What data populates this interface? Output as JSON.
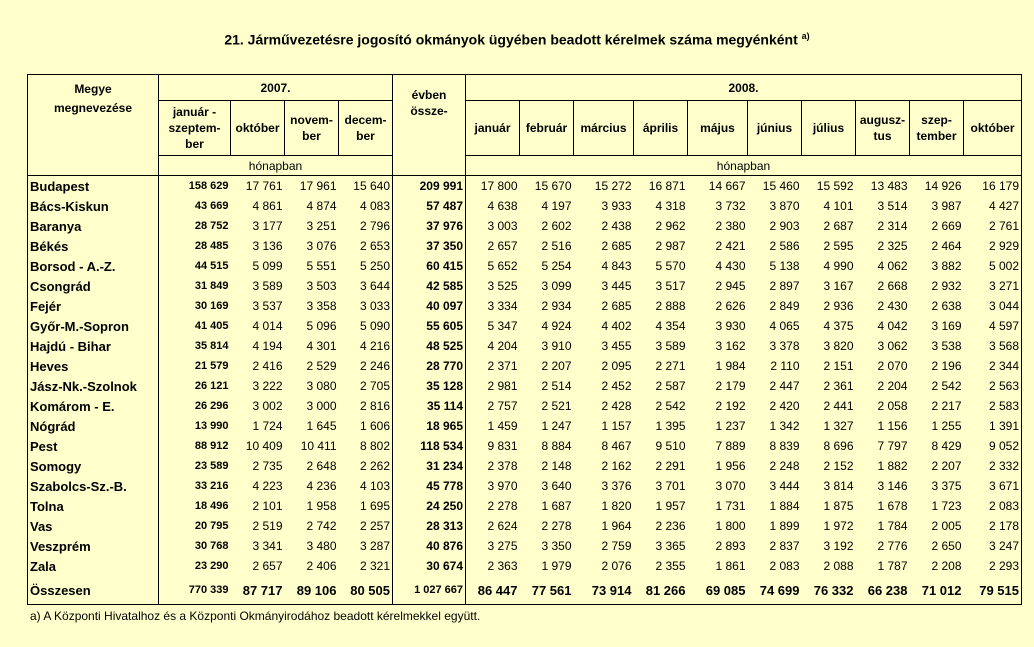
{
  "title": "21. Járművezetésre jogosító okmányok ügyében beadott kérelmek száma megyénként",
  "title_sup": "a)",
  "header": {
    "megye_line1": "Megye",
    "megye_line2": "megnevezése",
    "year2007": "2007.",
    "year2008": "2008.",
    "col_jan_sep": "január - szeptem- ber",
    "col_okt": "október",
    "col_nov": "novem- ber",
    "col_dec": "decem- ber",
    "col_evben": "évben össze-",
    "months2008": [
      "január",
      "február",
      "március",
      "április",
      "május",
      "június",
      "július",
      "augusz- tus",
      "szep- tember",
      "október"
    ],
    "honapban": "hónapban",
    "honapban2": "hónapban"
  },
  "rows": [
    {
      "name": "Budapest",
      "v": [
        "158 629",
        "17 761",
        "17 961",
        "15 640",
        "209 991",
        "17 800",
        "15 670",
        "15 272",
        "16 871",
        "14 667",
        "15 460",
        "15 592",
        "13 483",
        "14 926",
        "16 179"
      ]
    },
    {
      "name": "Bács-Kiskun",
      "v": [
        "43 669",
        "4 861",
        "4 874",
        "4 083",
        "57 487",
        "4 638",
        "4 197",
        "3 933",
        "4 318",
        "3 732",
        "3 870",
        "4 101",
        "3 514",
        "3 987",
        "4 427"
      ]
    },
    {
      "name": "Baranya",
      "v": [
        "28 752",
        "3 177",
        "3 251",
        "2 796",
        "37 976",
        "3 003",
        "2 602",
        "2 438",
        "2 962",
        "2 380",
        "2 903",
        "2 687",
        "2 314",
        "2 669",
        "2 761"
      ]
    },
    {
      "name": "Békés",
      "v": [
        "28 485",
        "3 136",
        "3 076",
        "2 653",
        "37 350",
        "2 657",
        "2 516",
        "2 685",
        "2 987",
        "2 421",
        "2 586",
        "2 595",
        "2 325",
        "2 464",
        "2 929"
      ]
    },
    {
      "name": "Borsod - A.-Z.",
      "v": [
        "44 515",
        "5 099",
        "5 551",
        "5 250",
        "60 415",
        "5 652",
        "5 254",
        "4 843",
        "5 570",
        "4 430",
        "5 138",
        "4 990",
        "4 062",
        "3 882",
        "5 002"
      ]
    },
    {
      "name": "Csongrád",
      "v": [
        "31 849",
        "3 589",
        "3 503",
        "3 644",
        "42 585",
        "3 525",
        "3 099",
        "3 445",
        "3 517",
        "2 945",
        "2 897",
        "3 167",
        "2 668",
        "2 932",
        "3 271"
      ]
    },
    {
      "name": "Fejér",
      "v": [
        "30 169",
        "3 537",
        "3 358",
        "3 033",
        "40 097",
        "3 334",
        "2 934",
        "2 685",
        "2 888",
        "2 626",
        "2 849",
        "2 936",
        "2 430",
        "2 638",
        "3 044"
      ]
    },
    {
      "name": "Győr-M.-Sopron",
      "v": [
        "41 405",
        "4 014",
        "5 096",
        "5 090",
        "55 605",
        "5 347",
        "4 924",
        "4 402",
        "4 354",
        "3 930",
        "4 065",
        "4 375",
        "4 042",
        "3 169",
        "4 597"
      ]
    },
    {
      "name": "Hajdú - Bihar",
      "v": [
        "35 814",
        "4 194",
        "4 301",
        "4 216",
        "48 525",
        "4 204",
        "3 910",
        "3 455",
        "3 589",
        "3 162",
        "3 378",
        "3 820",
        "3 062",
        "3 538",
        "3 568"
      ]
    },
    {
      "name": "Heves",
      "v": [
        "21 579",
        "2 416",
        "2 529",
        "2 246",
        "28 770",
        "2 371",
        "2 207",
        "2 095",
        "2 271",
        "1 984",
        "2 110",
        "2 151",
        "2 070",
        "2 196",
        "2 344"
      ]
    },
    {
      "name": "Jász-Nk.-Szolnok",
      "v": [
        "26 121",
        "3 222",
        "3 080",
        "2 705",
        "35 128",
        "2 981",
        "2 514",
        "2 452",
        "2 587",
        "2 179",
        "2 447",
        "2 361",
        "2 204",
        "2 542",
        "2 563"
      ]
    },
    {
      "name": "Komárom - E.",
      "v": [
        "26 296",
        "3 002",
        "3 000",
        "2 816",
        "35 114",
        "2 757",
        "2 521",
        "2 428",
        "2 542",
        "2 192",
        "2 420",
        "2 441",
        "2 058",
        "2 217",
        "2 583"
      ]
    },
    {
      "name": "Nógrád",
      "v": [
        "13 990",
        "1 724",
        "1 645",
        "1 606",
        "18 965",
        "1 459",
        "1 247",
        "1 157",
        "1 395",
        "1 237",
        "1 342",
        "1 327",
        "1 156",
        "1 255",
        "1 391"
      ]
    },
    {
      "name": "Pest",
      "v": [
        "88 912",
        "10 409",
        "10 411",
        "8 802",
        "118 534",
        "9 831",
        "8 884",
        "8 467",
        "9 510",
        "7 889",
        "8 839",
        "8 696",
        "7 797",
        "8 429",
        "9 052"
      ]
    },
    {
      "name": "Somogy",
      "v": [
        "23 589",
        "2 735",
        "2 648",
        "2 262",
        "31 234",
        "2 378",
        "2 148",
        "2 162",
        "2 291",
        "1 956",
        "2 248",
        "2 152",
        "1 882",
        "2 207",
        "2 332"
      ]
    },
    {
      "name": "Szabolcs-Sz.-B.",
      "v": [
        "33 216",
        "4 223",
        "4 236",
        "4 103",
        "45 778",
        "3 970",
        "3 640",
        "3 376",
        "3 701",
        "3 070",
        "3 444",
        "3 814",
        "3 146",
        "3 375",
        "3 671"
      ]
    },
    {
      "name": "Tolna",
      "v": [
        "18 496",
        "2 101",
        "1 958",
        "1 695",
        "24 250",
        "2 278",
        "1 687",
        "1 820",
        "1 957",
        "1 731",
        "1 884",
        "1 875",
        "1 678",
        "1 723",
        "2 083"
      ]
    },
    {
      "name": "Vas",
      "v": [
        "20 795",
        "2 519",
        "2 742",
        "2 257",
        "28 313",
        "2 624",
        "2 278",
        "1 964",
        "2 236",
        "1 800",
        "1 899",
        "1 972",
        "1 784",
        "2 005",
        "2 178"
      ]
    },
    {
      "name": "Veszprém",
      "v": [
        "30 768",
        "3 341",
        "3 480",
        "3 287",
        "40 876",
        "3 275",
        "3 350",
        "2 759",
        "3 365",
        "2 893",
        "2 837",
        "3 192",
        "2 776",
        "2 650",
        "3 247"
      ]
    },
    {
      "name": "Zala",
      "v": [
        "23 290",
        "2 657",
        "2 406",
        "2 321",
        "30 674",
        "2 363",
        "1 979",
        "2 076",
        "2 355",
        "1 861",
        "2 083",
        "2 088",
        "1 787",
        "2 208",
        "2 293"
      ]
    }
  ],
  "total": {
    "name": "Összesen",
    "v": [
      "770 339",
      "87 717",
      "89 106",
      "80 505",
      "1 027 667",
      "86 447",
      "77 561",
      "73 914",
      "81 266",
      "69 085",
      "74 699",
      "76 332",
      "66 238",
      "71 012",
      "79 515"
    ]
  },
  "footnote": "a) A Központi Hivatalhoz és a Központi Okmányirodához beadott kérelmekkel együtt."
}
